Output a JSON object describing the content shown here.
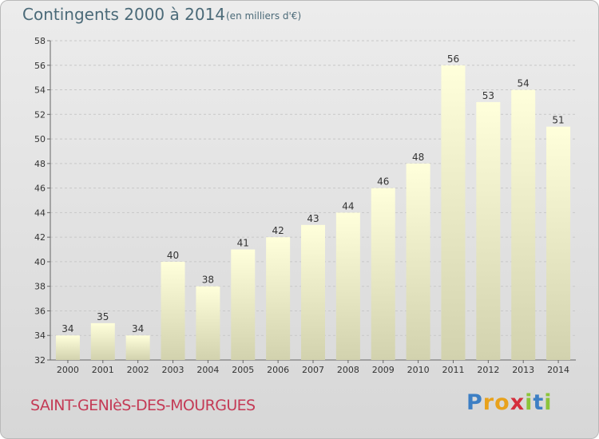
{
  "header": {
    "title": "Contingents 2000 à 2014",
    "subtitle": "(en milliers d'€)"
  },
  "footer": {
    "commune": "SAINT-GENIèS-DES-MOURGUES",
    "brand_letters": [
      {
        "char": "P",
        "color": "#3d7fc4"
      },
      {
        "char": "r",
        "color": "#e8a21c"
      },
      {
        "char": "o",
        "color": "#e8a21c"
      },
      {
        "char": "x",
        "color": "#d52f3d"
      },
      {
        "char": "i",
        "color": "#8cc43a"
      },
      {
        "char": "t",
        "color": "#3d7fc4"
      },
      {
        "char": "i",
        "color": "#8cc43a"
      }
    ]
  },
  "colors": {
    "bar_top": "#ffffdb",
    "bar_bottom": "#d2d2ae",
    "commune_text": "#c43b56",
    "title_text": "#4b6a78"
  },
  "chart_data": {
    "type": "bar",
    "categories": [
      "2000",
      "2001",
      "2002",
      "2003",
      "2004",
      "2005",
      "2006",
      "2007",
      "2008",
      "2009",
      "2010",
      "2011",
      "2012",
      "2013",
      "2014"
    ],
    "values": [
      34,
      35,
      34,
      40,
      38,
      41,
      42,
      43,
      44,
      46,
      48,
      56,
      53,
      54,
      51
    ],
    "title": "Contingents 2000 à 2014",
    "subtitle": "(en milliers d'€)",
    "ylim": [
      32,
      58
    ],
    "yticks": [
      32,
      34,
      36,
      38,
      40,
      42,
      44,
      46,
      48,
      50,
      52,
      54,
      56,
      58
    ],
    "grid": true,
    "data_labels": true
  }
}
